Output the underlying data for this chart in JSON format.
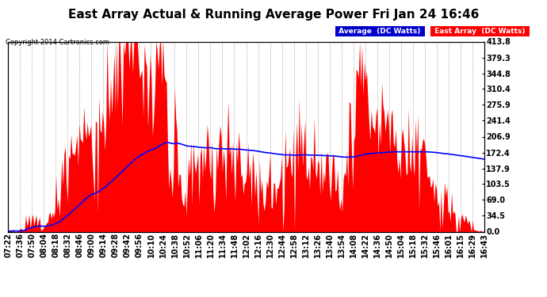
{
  "title": "East Array Actual & Running Average Power Fri Jan 24 16:46",
  "copyright": "Copyright 2014 Cartronics.com",
  "legend_avg": "Average  (DC Watts)",
  "legend_east": "East Array  (DC Watts)",
  "y_ticks": [
    0.0,
    34.5,
    69.0,
    103.5,
    137.9,
    172.4,
    206.9,
    241.4,
    275.9,
    310.4,
    344.8,
    379.3,
    413.8
  ],
  "ylim": [
    0,
    413.8
  ],
  "background_color": "#ffffff",
  "plot_bg_color": "#ffffff",
  "grid_color": "#aaaaaa",
  "bar_color": "#ff0000",
  "avg_line_color": "#0000ff",
  "title_fontsize": 11,
  "tick_fontsize": 7,
  "x_label_rotation": 90,
  "x_ticks": [
    "07:22",
    "07:36",
    "07:50",
    "08:04",
    "08:18",
    "08:32",
    "08:46",
    "09:00",
    "09:14",
    "09:28",
    "09:42",
    "09:56",
    "10:10",
    "10:24",
    "10:38",
    "10:52",
    "11:06",
    "11:20",
    "11:34",
    "11:48",
    "12:02",
    "12:16",
    "12:30",
    "12:44",
    "12:58",
    "13:12",
    "13:26",
    "13:40",
    "13:54",
    "14:08",
    "14:22",
    "14:36",
    "14:50",
    "15:04",
    "15:18",
    "15:32",
    "15:46",
    "16:01",
    "16:15",
    "16:29",
    "16:43"
  ]
}
